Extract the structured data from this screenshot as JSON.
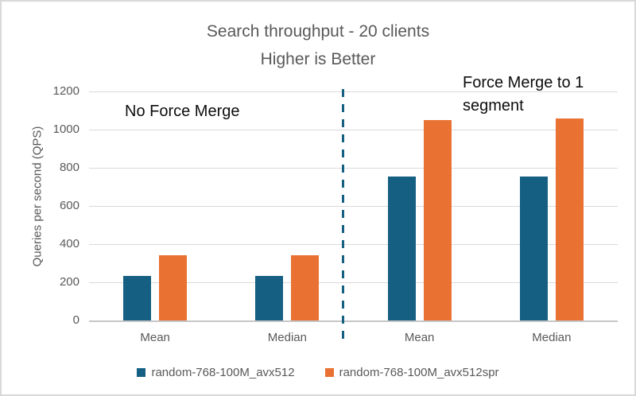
{
  "chart": {
    "title_line1": "Search throughput - 20 clients",
    "title_line2": "Higher is Better",
    "annotations": {
      "left": "No Force Merge",
      "right_line1": "Force Merge to 1",
      "right_line2": "segment"
    }
  },
  "chart_data": {
    "type": "bar",
    "title": "Search throughput - 20 clients",
    "subtitle": "Higher is Better",
    "categories": [
      "Mean",
      "Median",
      "Mean",
      "Median"
    ],
    "group_labels": [
      "No Force Merge",
      "Force Merge to 1 segment"
    ],
    "series": [
      {
        "name": "random-768-100M_avx512",
        "color": "#156082",
        "values": [
          235,
          235,
          755,
          755
        ]
      },
      {
        "name": "random-768-100M_avx512spr",
        "color": "#E97132",
        "values": [
          340,
          340,
          1050,
          1060
        ]
      }
    ],
    "xlabel": "",
    "ylabel": "Queries per second (QPS)",
    "ylim": [
      0,
      1200
    ],
    "yticks": [
      0,
      200,
      400,
      600,
      800,
      1000,
      1200
    ],
    "grid": true,
    "legend_position": "bottom",
    "divider": {
      "style": "dashed",
      "color": "#156082",
      "after_category_index": 1
    }
  },
  "colors": {
    "gridline": "#D9D9D9",
    "axis_text": "#595959",
    "annotation_text": "#0D0D0D",
    "frame_border": "#D9D9D9",
    "series1": "#156082",
    "series2": "#E97132"
  }
}
